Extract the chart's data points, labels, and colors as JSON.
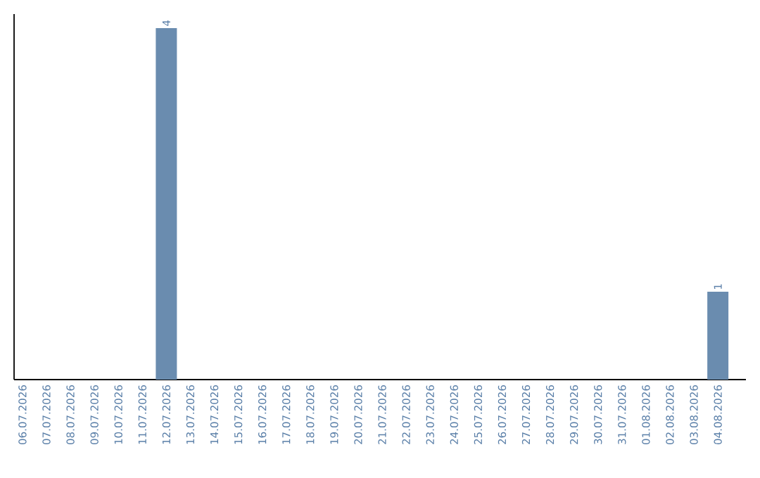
{
  "chart_data": {
    "type": "bar",
    "categories": [
      "06.07.2026",
      "07.07.2026",
      "08.07.2026",
      "09.07.2026",
      "10.07.2026",
      "11.07.2026",
      "12.07.2026",
      "13.07.2026",
      "14.07.2026",
      "15.07.2026",
      "16.07.2026",
      "17.07.2026",
      "18.07.2026",
      "19.07.2026",
      "20.07.2026",
      "21.07.2026",
      "22.07.2026",
      "23.07.2026",
      "24.07.2026",
      "25.07.2026",
      "26.07.2026",
      "27.07.2026",
      "28.07.2026",
      "29.07.2026",
      "30.07.2026",
      "31.07.2026",
      "01.08.2026",
      "02.08.2026",
      "03.08.2026",
      "04.08.2026"
    ],
    "values": [
      0,
      0,
      0,
      0,
      0,
      0,
      4,
      0,
      0,
      0,
      0,
      0,
      0,
      0,
      0,
      0,
      0,
      0,
      0,
      0,
      0,
      0,
      0,
      0,
      0,
      0,
      0,
      0,
      0,
      1
    ],
    "value_labels": [
      null,
      null,
      null,
      null,
      null,
      null,
      "4",
      null,
      null,
      null,
      null,
      null,
      null,
      null,
      null,
      null,
      null,
      null,
      null,
      null,
      null,
      null,
      null,
      null,
      null,
      null,
      null,
      null,
      null,
      "1"
    ],
    "color": "#6a8caf"
  }
}
